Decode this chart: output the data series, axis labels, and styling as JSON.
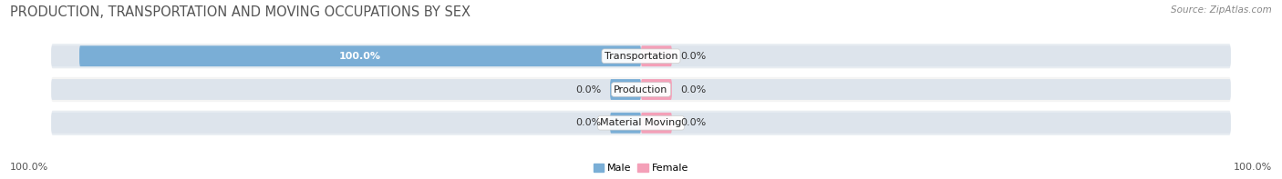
{
  "title": "PRODUCTION, TRANSPORTATION AND MOVING OCCUPATIONS BY SEX",
  "source_text": "Source: ZipAtlas.com",
  "categories": [
    "Transportation",
    "Production",
    "Material Moving"
  ],
  "male_values": [
    100.0,
    0.0,
    0.0
  ],
  "female_values": [
    0.0,
    0.0,
    0.0
  ],
  "male_color": "#7aaed6",
  "female_color": "#f4a0b8",
  "bar_bg_color": "#e8edf2",
  "bar_bg_color2": "#f5f5f5",
  "x_axis_left_label": "100.0%",
  "x_axis_right_label": "100.0%",
  "legend_male": "Male",
  "legend_female": "Female",
  "title_fontsize": 10.5,
  "label_fontsize": 8.0,
  "tick_fontsize": 8.0,
  "bar_height": 0.62,
  "row_bg_colors": [
    "#e8edf2",
    "#f0f0f0",
    "#e8edf2"
  ],
  "figsize": [
    14.06,
    1.97
  ],
  "dpi": 100,
  "stub_size": 5.5,
  "xlim": 105
}
